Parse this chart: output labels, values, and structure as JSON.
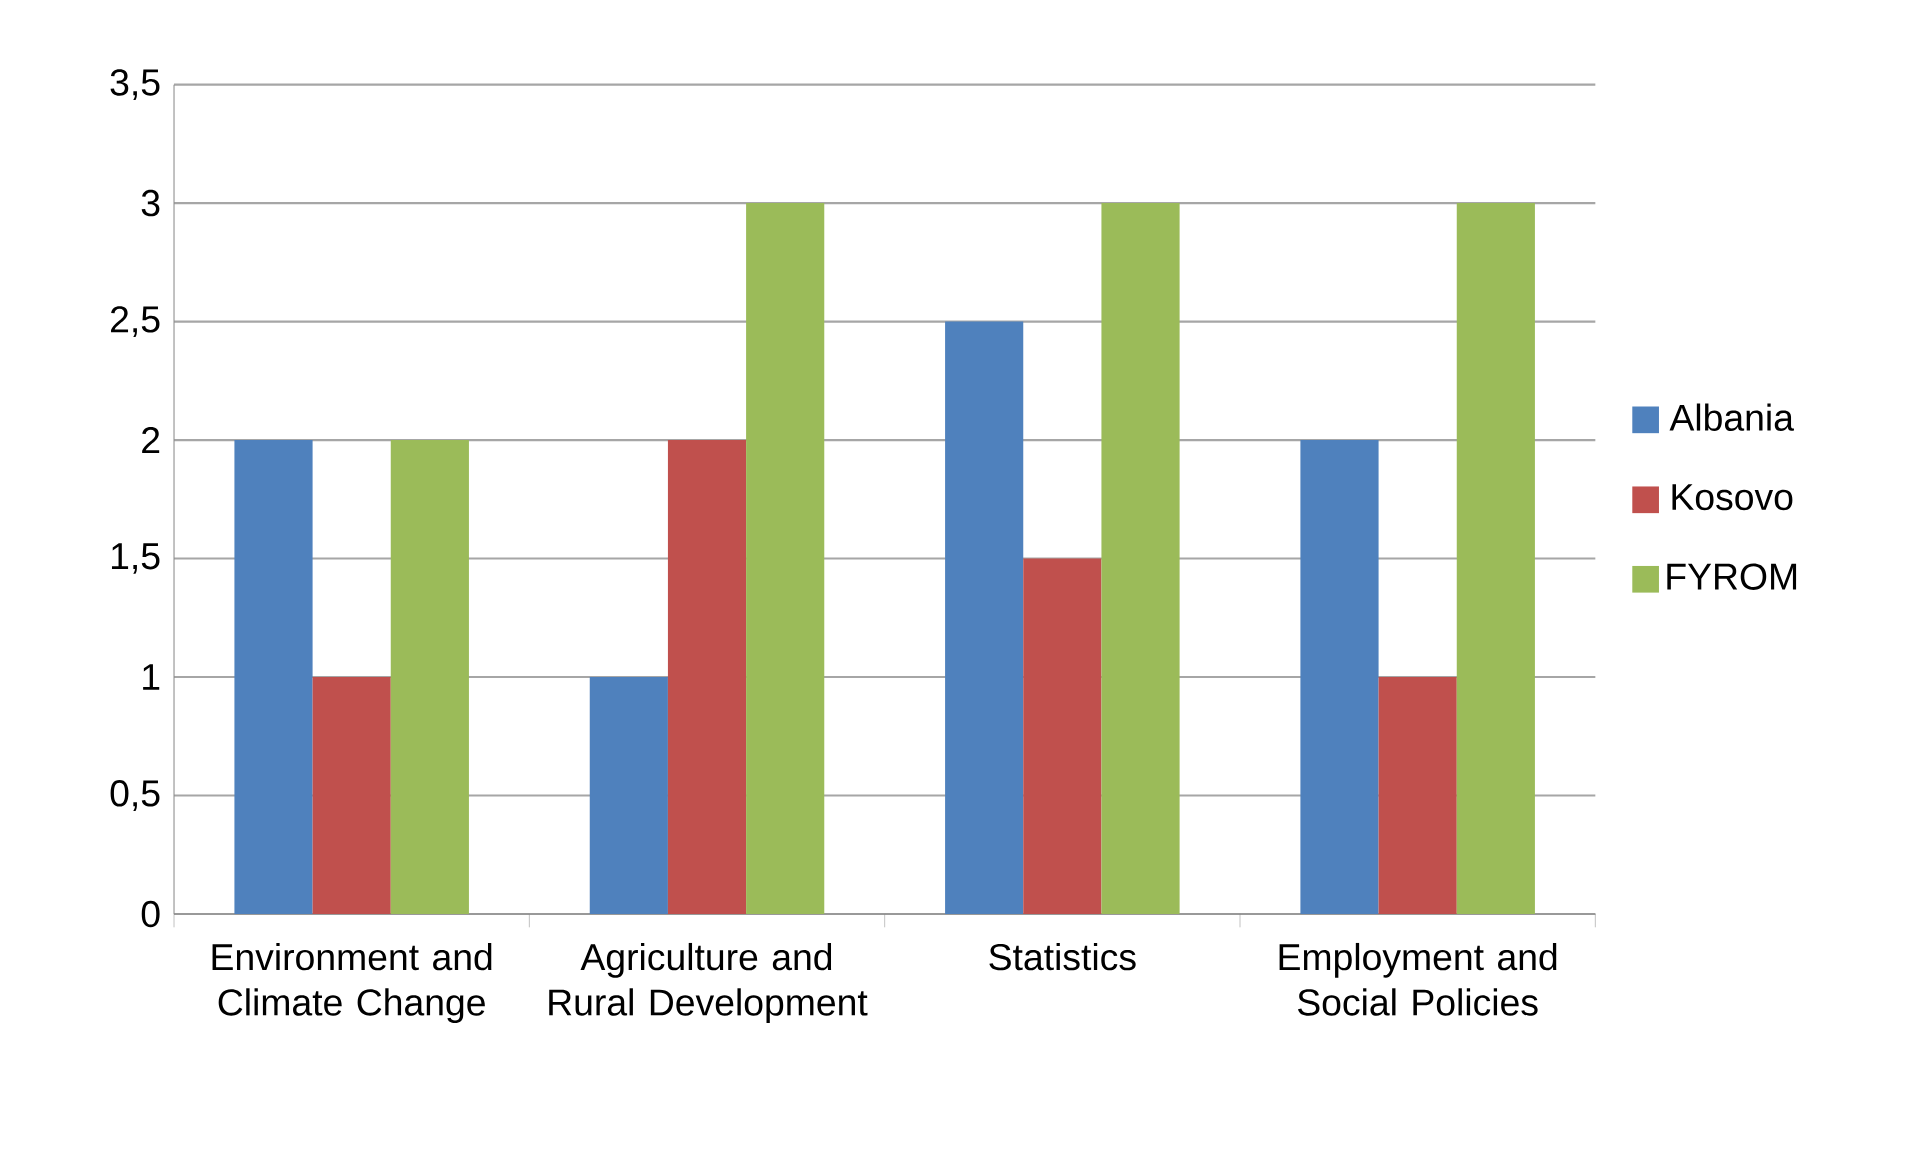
{
  "chart_data": {
    "type": "bar",
    "categories": [
      "Environment and Climate Change",
      "Agriculture and Rural Development",
      "Statistics",
      "Employment and Social Policies"
    ],
    "series": [
      {
        "name": "Albania",
        "color": "#4f81bd",
        "values": [
          2,
          1,
          2.5,
          2
        ]
      },
      {
        "name": "Kosovo",
        "color": "#c0504d",
        "values": [
          1,
          2,
          1.5,
          1
        ]
      },
      {
        "name": "FYROM",
        "color": "#9bbb59",
        "values": [
          2,
          3,
          3,
          3
        ]
      }
    ],
    "ylim": [
      0,
      3.5
    ],
    "yticks": [
      0,
      {
        "value": 0.5,
        "label": "0,5"
      },
      1,
      {
        "value": 1.5,
        "label": "1,5"
      },
      2,
      {
        "value": 2.5,
        "label": "2,5"
      },
      3,
      {
        "value": 3.5,
        "label": "3,5"
      }
    ],
    "grid": "y",
    "legend": "right"
  }
}
